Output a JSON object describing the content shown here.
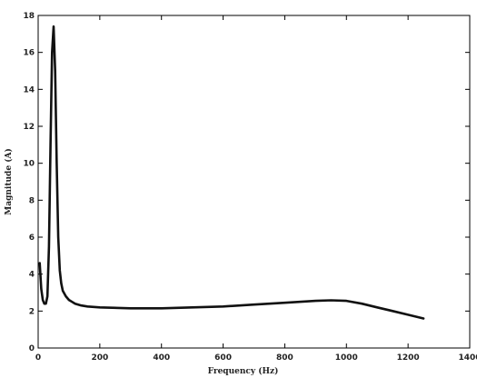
{
  "chart_data": {
    "type": "line",
    "title": "",
    "xlabel": "Frequency (Hz)",
    "ylabel": "Magnitude (A)",
    "xlim": [
      0,
      1400
    ],
    "ylim": [
      0,
      18
    ],
    "xticks": [
      0,
      200,
      400,
      600,
      800,
      1000,
      1200,
      1400
    ],
    "yticks": [
      0,
      2,
      4,
      6,
      8,
      10,
      12,
      14,
      16,
      18
    ],
    "grid": false,
    "legend": "none",
    "series": [
      {
        "color": "#111111",
        "x": [
          5,
          10,
          15,
          20,
          25,
          30,
          35,
          40,
          45,
          50,
          55,
          60,
          65,
          70,
          75,
          80,
          90,
          100,
          110,
          120,
          140,
          160,
          200,
          300,
          400,
          500,
          600,
          700,
          800,
          900,
          950,
          1000,
          1050,
          1100,
          1150,
          1200,
          1250
        ],
        "y": [
          4.6,
          3.2,
          2.6,
          2.4,
          2.4,
          2.8,
          5.5,
          11.0,
          16.0,
          17.4,
          15.0,
          10.0,
          6.0,
          4.2,
          3.5,
          3.1,
          2.8,
          2.6,
          2.5,
          2.4,
          2.3,
          2.25,
          2.2,
          2.15,
          2.15,
          2.2,
          2.25,
          2.35,
          2.45,
          2.55,
          2.58,
          2.55,
          2.4,
          2.2,
          2.0,
          1.8,
          1.6
        ]
      }
    ]
  }
}
